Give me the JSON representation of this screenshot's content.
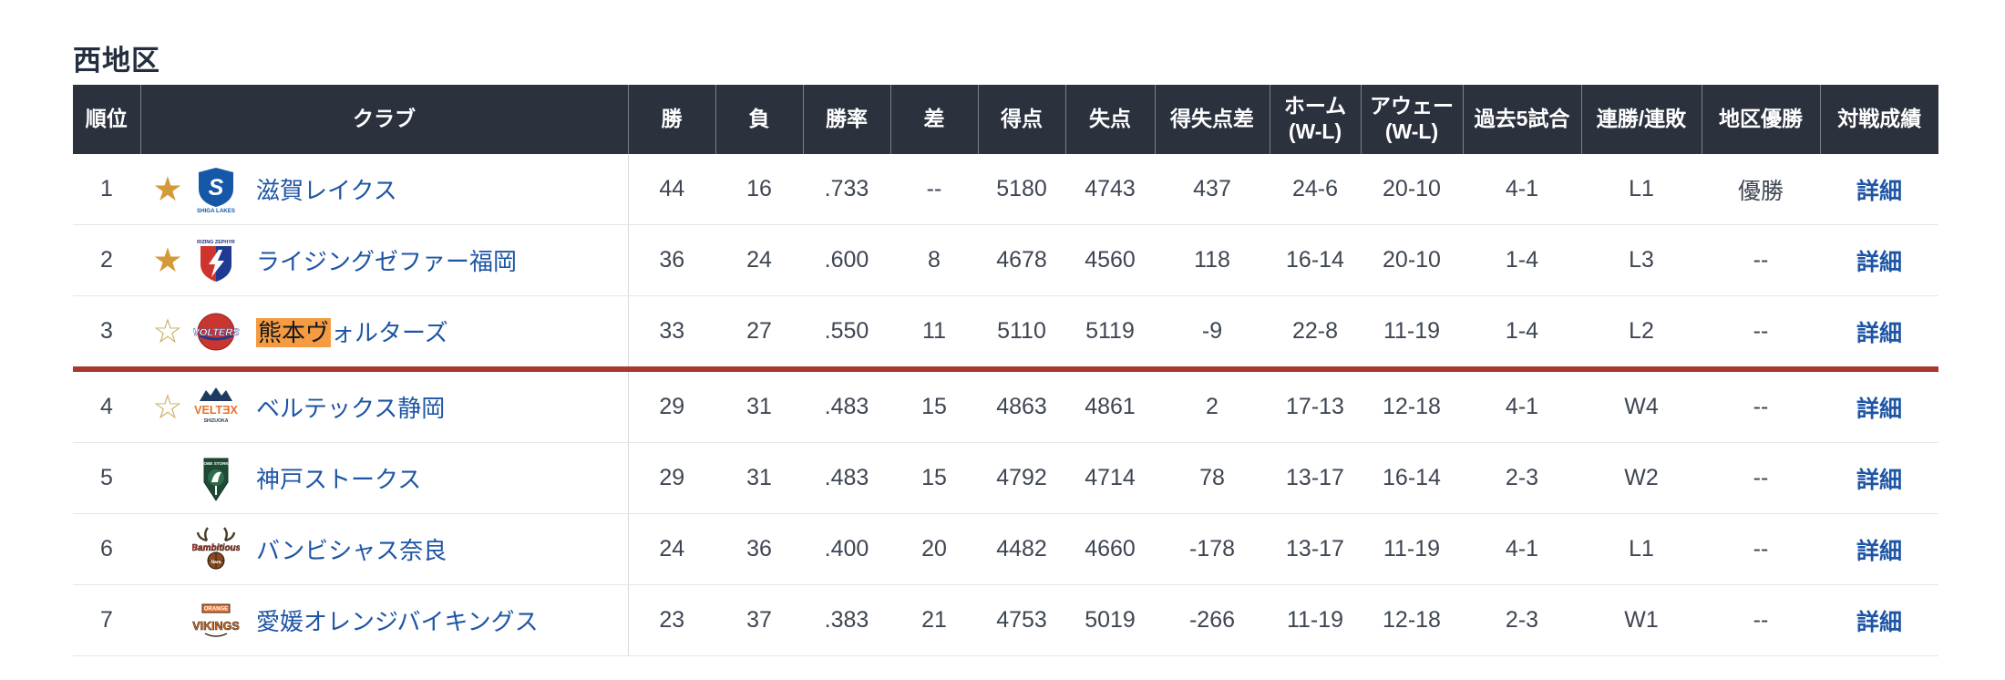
{
  "title": "西地区",
  "colors": {
    "header_bg": "#2b323e",
    "link_blue": "#1e55a5",
    "cutoff_red": "#a83731",
    "highlight_orange": "#f59b42",
    "star_gold": "#d49a3a"
  },
  "icons": {
    "star_filled": "★",
    "star_outline": "☆"
  },
  "table": {
    "headers": [
      {
        "key": "rank",
        "label": "順位"
      },
      {
        "key": "club",
        "label": "クラブ"
      },
      {
        "key": "wins",
        "label": "勝"
      },
      {
        "key": "losses",
        "label": "負"
      },
      {
        "key": "pct",
        "label": "勝率"
      },
      {
        "key": "gb",
        "label": "差"
      },
      {
        "key": "pf",
        "label": "得点"
      },
      {
        "key": "pa",
        "label": "失点"
      },
      {
        "key": "diff",
        "label": "得失点差"
      },
      {
        "key": "home",
        "label": "ホーム",
        "sub": "(W-L)"
      },
      {
        "key": "away",
        "label": "アウェー",
        "sub": "(W-L)"
      },
      {
        "key": "last5",
        "label": "過去5試合"
      },
      {
        "key": "streak",
        "label": "連勝/連敗"
      },
      {
        "key": "district",
        "label": "地区優勝"
      },
      {
        "key": "vs",
        "label": "対戦成績"
      }
    ],
    "rows": [
      {
        "rank": "1",
        "star": "filled",
        "logo": "shiga-lakes",
        "club": "滋賀レイクス",
        "wins": "44",
        "losses": "16",
        "pct": ".733",
        "gb": "--",
        "pf": "5180",
        "pa": "4743",
        "diff": "437",
        "home": "24-6",
        "away": "20-10",
        "last5": "4-1",
        "streak": "L1",
        "district": "優勝",
        "vs": "詳細"
      },
      {
        "rank": "2",
        "star": "filled",
        "logo": "rizing-zephyr-fukuoka",
        "club": "ライジングゼファー福岡",
        "wins": "36",
        "losses": "24",
        "pct": ".600",
        "gb": "8",
        "pf": "4678",
        "pa": "4560",
        "diff": "118",
        "home": "16-14",
        "away": "20-10",
        "last5": "1-4",
        "streak": "L3",
        "district": "--",
        "vs": "詳細"
      },
      {
        "rank": "3",
        "star": "outline",
        "logo": "kumamoto-volters",
        "club": "熊本ヴォルターズ",
        "club_highlight": "熊本ヴ",
        "club_rest": "ォルターズ",
        "wins": "33",
        "losses": "27",
        "pct": ".550",
        "gb": "11",
        "pf": "5110",
        "pa": "5119",
        "diff": "-9",
        "home": "22-8",
        "away": "11-19",
        "last5": "1-4",
        "streak": "L2",
        "district": "--",
        "vs": "詳細",
        "cutoff_below": true
      },
      {
        "rank": "4",
        "star": "outline",
        "logo": "veltex-shizuoka",
        "club": "ベルテックス静岡",
        "wins": "29",
        "losses": "31",
        "pct": ".483",
        "gb": "15",
        "pf": "4863",
        "pa": "4861",
        "diff": "2",
        "home": "17-13",
        "away": "12-18",
        "last5": "4-1",
        "streak": "W4",
        "district": "--",
        "vs": "詳細"
      },
      {
        "rank": "5",
        "star": "none",
        "logo": "kobe-storks",
        "club": "神戸ストークス",
        "wins": "29",
        "losses": "31",
        "pct": ".483",
        "gb": "15",
        "pf": "4792",
        "pa": "4714",
        "diff": "78",
        "home": "13-17",
        "away": "16-14",
        "last5": "2-3",
        "streak": "W2",
        "district": "--",
        "vs": "詳細"
      },
      {
        "rank": "6",
        "star": "none",
        "logo": "bambitious-nara",
        "club": "バンビシャス奈良",
        "wins": "24",
        "losses": "36",
        "pct": ".400",
        "gb": "20",
        "pf": "4482",
        "pa": "4660",
        "diff": "-178",
        "home": "13-17",
        "away": "11-19",
        "last5": "4-1",
        "streak": "L1",
        "district": "--",
        "vs": "詳細"
      },
      {
        "rank": "7",
        "star": "none",
        "logo": "ehime-orange-vikings",
        "club": "愛媛オレンジバイキングス",
        "wins": "23",
        "losses": "37",
        "pct": ".383",
        "gb": "21",
        "pf": "4753",
        "pa": "5019",
        "diff": "-266",
        "home": "11-19",
        "away": "12-18",
        "last5": "2-3",
        "streak": "W1",
        "district": "--",
        "vs": "詳細"
      }
    ]
  }
}
